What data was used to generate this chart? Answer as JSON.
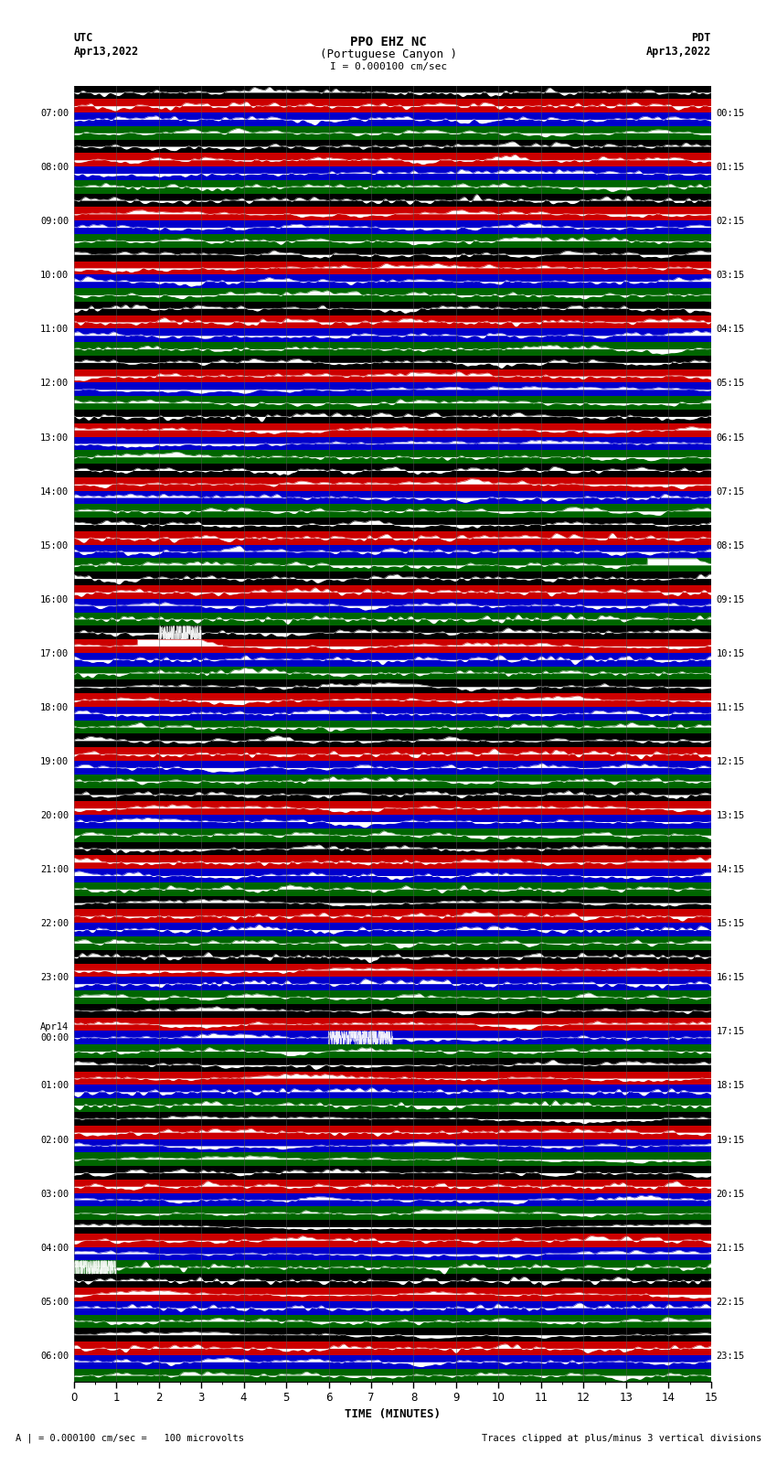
{
  "title_line1": "PPO EHZ NC",
  "title_line2": "(Portuguese Canyon )",
  "title_line3": "I = 0.000100 cm/sec",
  "left_label_top": "UTC",
  "left_label_date": "Apr13,2022",
  "right_label_top": "PDT",
  "right_label_date": "Apr13,2022",
  "bottom_label": "TIME (MINUTES)",
  "bottom_note_left": "A | = 0.000100 cm/sec =   100 microvolts",
  "bottom_note_right": "Traces clipped at plus/minus 3 vertical divisions",
  "utc_times": [
    "07:00",
    "08:00",
    "09:00",
    "10:00",
    "11:00",
    "12:00",
    "13:00",
    "14:00",
    "15:00",
    "16:00",
    "17:00",
    "18:00",
    "19:00",
    "20:00",
    "21:00",
    "22:00",
    "23:00",
    "Apr14\n00:00",
    "01:00",
    "02:00",
    "03:00",
    "04:00",
    "05:00",
    "06:00"
  ],
  "pdt_times": [
    "00:15",
    "01:15",
    "02:15",
    "03:15",
    "04:15",
    "05:15",
    "06:15",
    "07:15",
    "08:15",
    "09:15",
    "10:15",
    "11:15",
    "12:15",
    "13:15",
    "14:15",
    "15:15",
    "16:15",
    "17:15",
    "18:15",
    "19:15",
    "20:15",
    "21:15",
    "22:15",
    "23:15"
  ],
  "n_rows": 24,
  "x_min": 0,
  "x_max": 15,
  "strip_colors": [
    "#000000",
    "#cc0000",
    "#0000cc",
    "#006600"
  ],
  "bg_color": "white",
  "seed": 42
}
